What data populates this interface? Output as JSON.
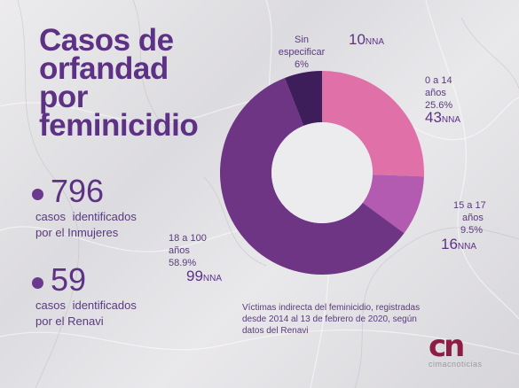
{
  "title_lines": [
    "Casos de",
    "orfandad",
    "por",
    "feminicidio"
  ],
  "stats": [
    {
      "value": "796",
      "desc_line1": "casos identificados",
      "desc_line2": "por el Inmujeres"
    },
    {
      "value": "59",
      "desc_line1": "casos identificados",
      "desc_line2": "por el Renavi"
    }
  ],
  "chart_data": {
    "type": "pie",
    "variant": "donut",
    "categories": [
      "0 a 14 años",
      "15 a 17 años",
      "18 a 100 años",
      "Sin especificar"
    ],
    "values": [
      43,
      16,
      99,
      10
    ],
    "percent_labels": [
      "25.6%",
      "9.5%",
      "58.9%",
      "6%"
    ],
    "unit": "NNA",
    "colors": [
      "#e070a8",
      "#b35bb0",
      "#6e3585",
      "#3e1e5a"
    ],
    "title": "",
    "legend": "none"
  },
  "labels": [
    {
      "line1": "0 a 14",
      "line2": "años",
      "pct": "25.6%",
      "count": "43",
      "unit": "NNA"
    },
    {
      "line1": "15 a 17",
      "line2": "años",
      "pct": "9.5%",
      "count": "16",
      "unit": "NNA"
    },
    {
      "line1": "18 a 100",
      "line2": "años",
      "pct": "58.9%",
      "count": "99",
      "unit": "NNA"
    },
    {
      "line1": "Sin",
      "line2": "especificar",
      "pct": "6%",
      "count": "10",
      "unit": "NNA"
    }
  ],
  "footnote": "Víctimas indirecta del feminicidio, registradas desde 2014 al 13 de febrero de 2020, según datos del Renavi",
  "logo": {
    "mark": "cn",
    "word": "cimacnoticias"
  }
}
